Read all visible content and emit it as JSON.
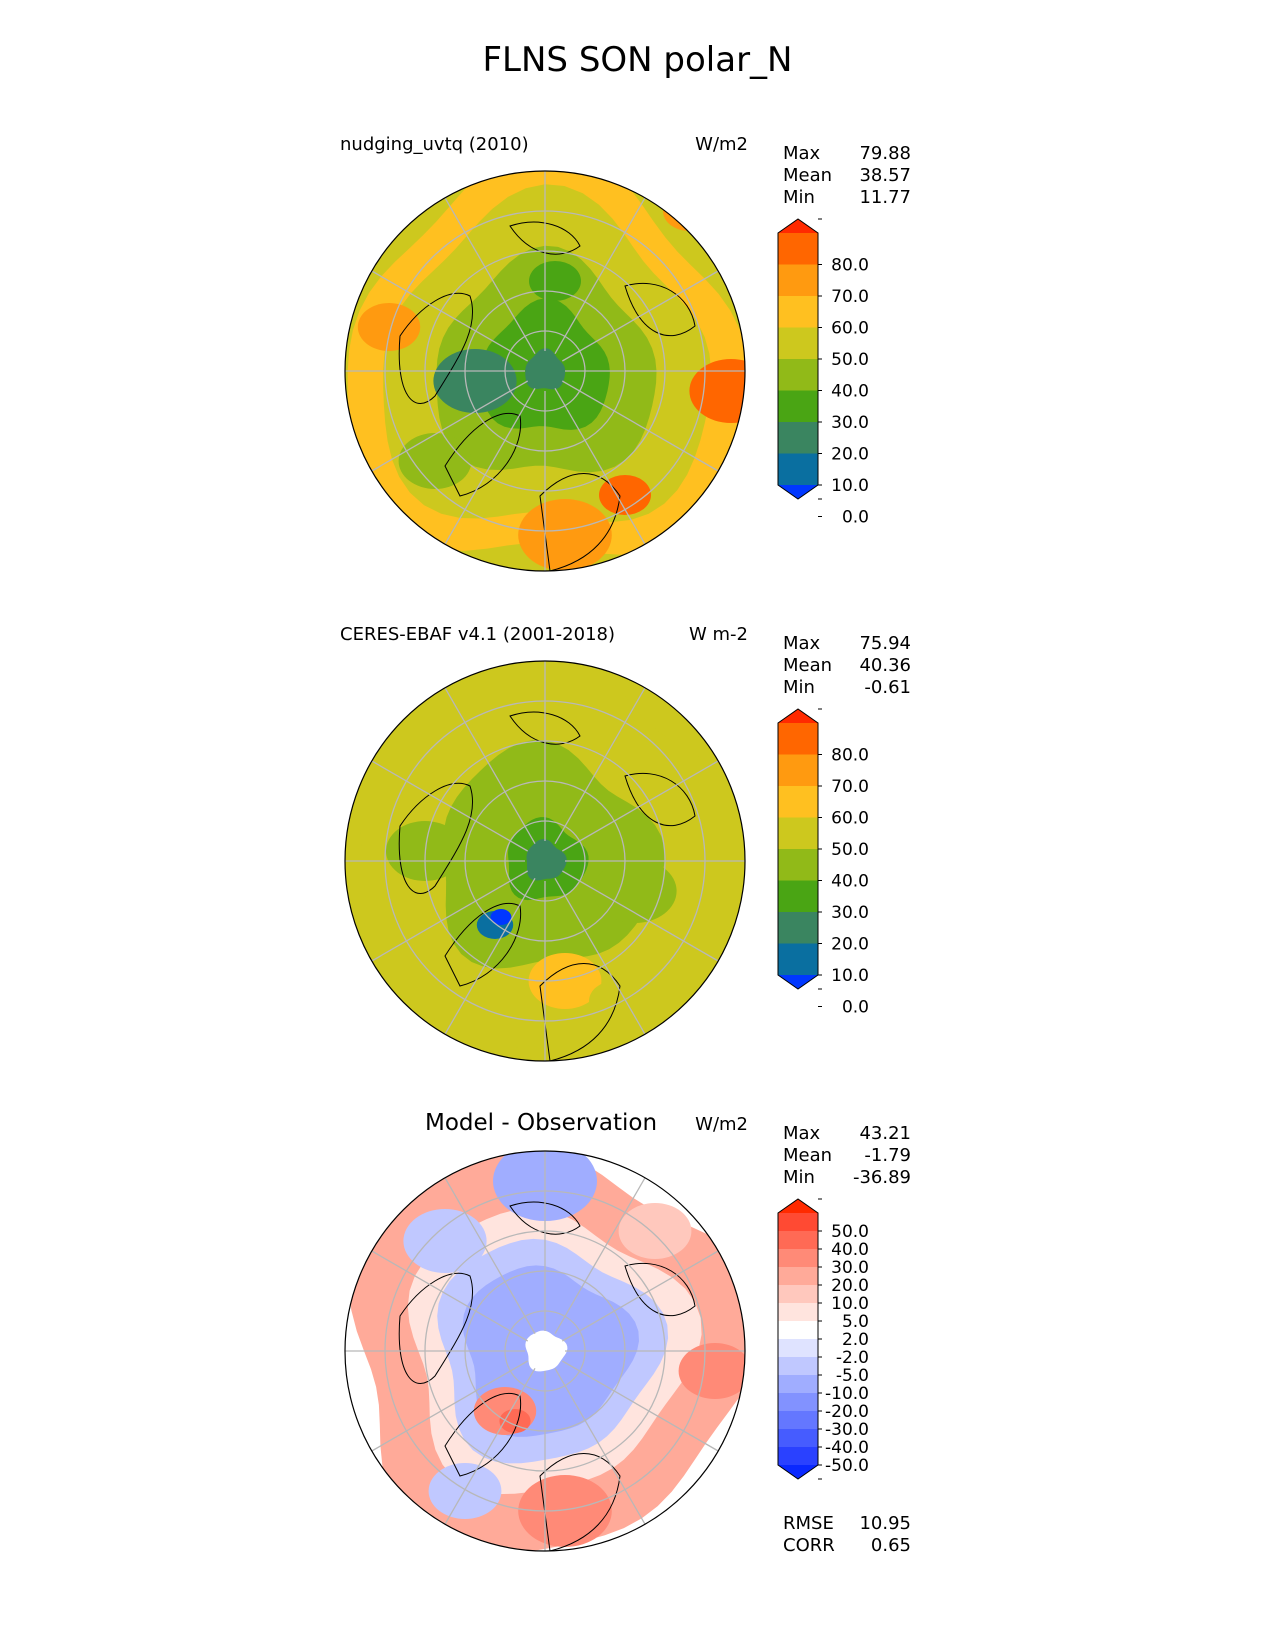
{
  "title": "FLNS SON polar_N",
  "panels": [
    {
      "id": "model",
      "title": "nudging_uvtq (2010)",
      "units": "W/m2",
      "stats": [
        {
          "label": "Max",
          "value": "79.88"
        },
        {
          "label": "Mean",
          "value": "38.57"
        },
        {
          "label": "Min",
          "value": "11.77"
        }
      ],
      "colorbar": {
        "ticks": [
          "80.0",
          "70.0",
          "60.0",
          "50.0",
          "40.0",
          "30.0",
          "20.0",
          "10.0",
          "0.0"
        ],
        "colors": [
          "#ff2a00",
          "#ff6600",
          "#ff9a10",
          "#ffc020",
          "#cdc81e",
          "#91ba18",
          "#4aa514",
          "#3a8560",
          "#0a6fa0",
          "#0037ff"
        ]
      }
    },
    {
      "id": "obs",
      "title": "CERES-EBAF v4.1 (2001-2018)",
      "units": "W m-2",
      "stats": [
        {
          "label": "Max",
          "value": "75.94"
        },
        {
          "label": "Mean",
          "value": "40.36"
        },
        {
          "label": "Min",
          "value": "-0.61"
        }
      ],
      "colorbar": {
        "ticks": [
          "80.0",
          "70.0",
          "60.0",
          "50.0",
          "40.0",
          "30.0",
          "20.0",
          "10.0",
          "0.0"
        ],
        "colors": [
          "#ff2a00",
          "#ff6600",
          "#ff9a10",
          "#ffc020",
          "#cdc81e",
          "#91ba18",
          "#4aa514",
          "#3a8560",
          "#0a6fa0",
          "#0037ff"
        ]
      }
    },
    {
      "id": "diff",
      "title": "Model - Observation",
      "units": "W/m2",
      "stats": [
        {
          "label": "Max",
          "value": "43.21"
        },
        {
          "label": "Mean",
          "value": "-1.79"
        },
        {
          "label": "Min",
          "value": "-36.89"
        }
      ],
      "colorbar": {
        "ticks": [
          "50.0",
          "40.0",
          "30.0",
          "20.0",
          "10.0",
          "5.0",
          "2.0",
          "-2.0",
          "-5.0",
          "-10.0",
          "-20.0",
          "-30.0",
          "-40.0",
          "-50.0"
        ],
        "colors": [
          "#ff2a00",
          "#ff4a33",
          "#ff6a55",
          "#ff8a77",
          "#ffaa99",
          "#ffc8bd",
          "#ffe4de",
          "#ffffff",
          "#dfe3ff",
          "#c0c8ff",
          "#a0adff",
          "#8292ff",
          "#6477ff",
          "#465cff",
          "#2a41ff",
          "#0a28ff"
        ]
      },
      "extra_stats": [
        {
          "label": "RMSE",
          "value": "10.95"
        },
        {
          "label": "CORR",
          "value": "0.65"
        }
      ]
    }
  ]
}
